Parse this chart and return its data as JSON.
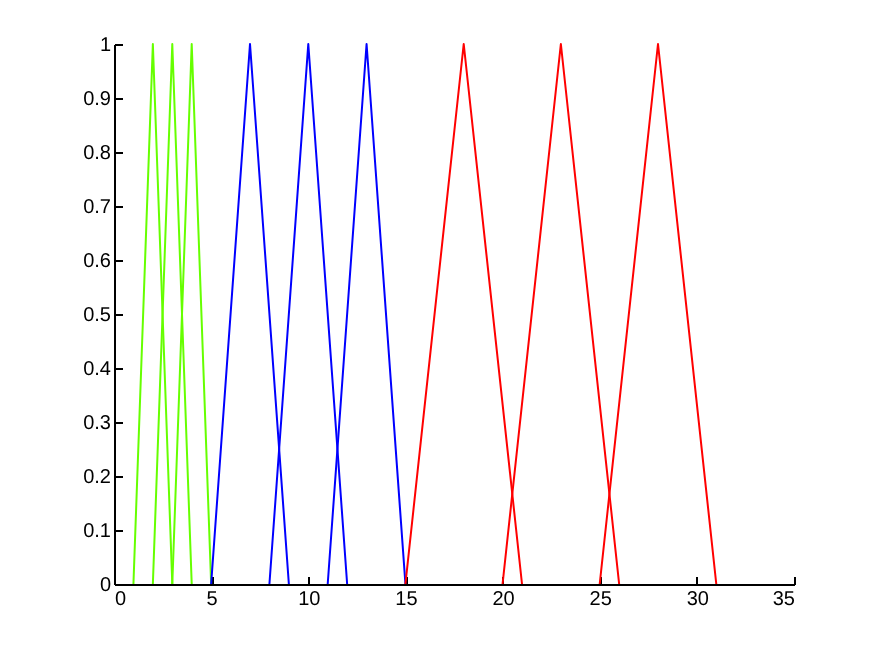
{
  "chart_data": {
    "type": "line",
    "xlim": [
      0,
      35
    ],
    "xticks": [
      0,
      5,
      10,
      15,
      20,
      25,
      30,
      35
    ],
    "ylim": [
      0,
      1
    ],
    "yticks": [
      0,
      0.1,
      0.2,
      0.3,
      0.4,
      0.5,
      0.6,
      0.7,
      0.8,
      0.9,
      1
    ],
    "grid": false,
    "legend": false,
    "marker": "none",
    "line_style": "solid",
    "series": [
      {
        "color": "#66ff00",
        "x": [
          1,
          2,
          3
        ],
        "values": [
          0,
          1,
          0
        ]
      },
      {
        "color": "#66ff00",
        "x": [
          2,
          3,
          4
        ],
        "values": [
          0,
          1,
          0
        ]
      },
      {
        "color": "#66ff00",
        "x": [
          3,
          4,
          5
        ],
        "values": [
          0,
          1,
          0
        ]
      },
      {
        "color": "#0000ff",
        "x": [
          5,
          7,
          9
        ],
        "values": [
          0,
          1,
          0
        ]
      },
      {
        "color": "#0000ff",
        "x": [
          8,
          10,
          12
        ],
        "values": [
          0,
          1,
          0
        ]
      },
      {
        "color": "#0000ff",
        "x": [
          11,
          13,
          15
        ],
        "values": [
          0,
          1,
          0
        ]
      },
      {
        "color": "#ff0000",
        "x": [
          15,
          18,
          21
        ],
        "values": [
          0,
          1,
          0
        ]
      },
      {
        "color": "#ff0000",
        "x": [
          20,
          23,
          26
        ],
        "values": [
          0,
          1,
          0
        ]
      },
      {
        "color": "#ff0000",
        "x": [
          25,
          28,
          31
        ],
        "values": [
          0,
          1,
          0
        ]
      }
    ]
  }
}
